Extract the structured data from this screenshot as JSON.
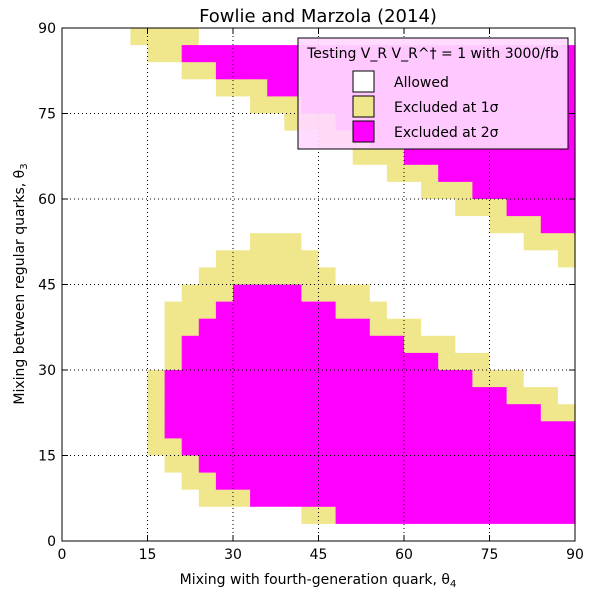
{
  "chart_data": {
    "type": "heatmap",
    "title": "Fowlie and Marzola (2014)",
    "xlabel": "Mixing with fourth-generation quark, θ",
    "xlabel_sub": "4",
    "ylabel": "Mixing between regular quarks, θ",
    "ylabel_sub": "3",
    "xlim": [
      0,
      90
    ],
    "ylim": [
      0,
      90
    ],
    "cell_size": 3,
    "grid": true,
    "x_ticks": [
      0,
      15,
      30,
      45,
      60,
      75,
      90
    ],
    "y_ticks": [
      0,
      15,
      30,
      45,
      60,
      75,
      90
    ],
    "x_tick_labels": [
      "0",
      "15",
      "30",
      "45",
      "60",
      "75",
      "90"
    ],
    "y_tick_labels": [
      "0",
      "15",
      "30",
      "45",
      "60",
      "75",
      "90"
    ],
    "classes": [
      {
        "name": "Allowed",
        "code": 0,
        "color": "#ffffff"
      },
      {
        "name": "Excluded at 1σ",
        "code": 1,
        "color": "#f0e68c"
      },
      {
        "name": "Excluded at 2σ",
        "code": 2,
        "color": "#ff00ff"
      }
    ],
    "legend": {
      "title": "Testing V_R V_R^† = 1 with 3000/fb",
      "placement": "top-right",
      "entries": [
        "Allowed",
        "Excluded at 1σ",
        "Excluded at 2σ"
      ]
    },
    "grid_rows_top_to_bottom": [
      "000011110000000000000000000000",
      "000001122222222222222222222222",
      "000000011222222222222222222222",
      "000000000111222222222222222222",
      "000000000001112222222222222222",
      "000000000000011122222222222222",
      "000000000000000111222222222222",
      "000000000000000001112222222222",
      "000000000000000000011122222222",
      "000000000000000000000111222222",
      "000000000000000000000001112222",
      "000000000000000000000000011122",
      "000000000001110000000000000111",
      "000000000111111000000000000001",
      "000000001111111100000000000000",
      "000000011122221111000000000000",
      "000000111222222211100000000000",
      "000000112222222222111000000000",
      "000000122222222222221110000000",
      "000000122222222222222211100000",
      "000001222222222222222222111000",
      "000001222222222222222222221110",
      "000001222222222222222222222211",
      "000001222222222222222222222222",
      "000001122222222222222222222222",
      "000000112222222222222222222222",
      "000000011222222222222222222222",
      "000000001112222222222222222222",
      "000000000000001122222222222222",
      "000000000000000000000000000000"
    ]
  }
}
